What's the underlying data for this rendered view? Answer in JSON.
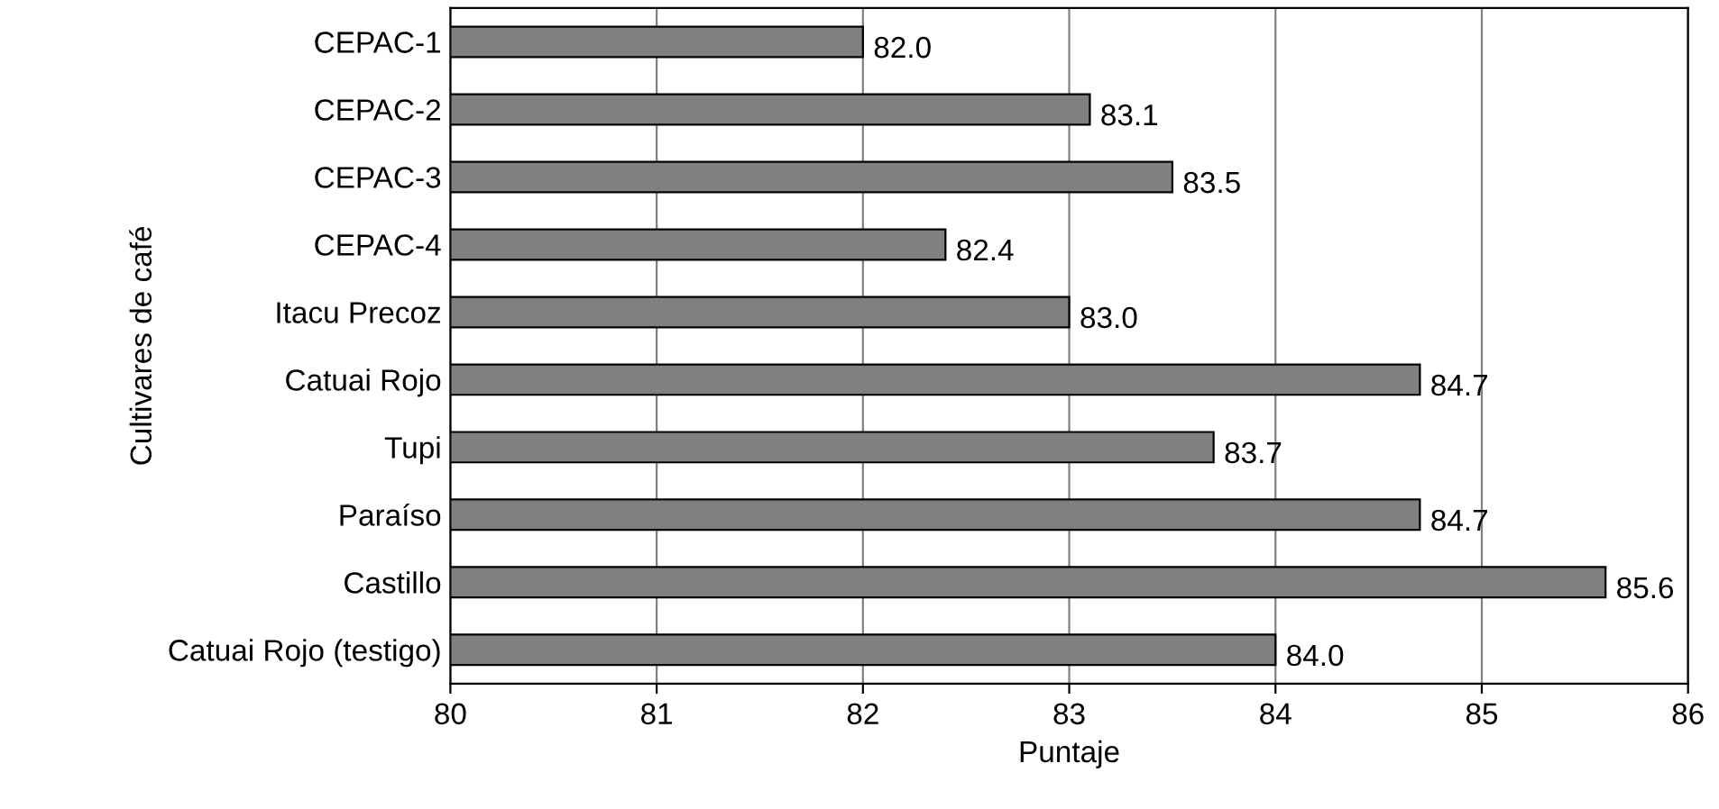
{
  "chart_data": {
    "type": "bar",
    "orientation": "horizontal",
    "xlabel": "Puntaje",
    "ylabel": "Cultivares de café",
    "categories": [
      "CEPAC-1",
      "CEPAC-2",
      "CEPAC-3",
      "CEPAC-4",
      "Itacu Precoz",
      "Catuai Rojo",
      "Tupi",
      "Paraíso",
      "Castillo",
      "Catuai Rojo (testigo)"
    ],
    "values": [
      82.0,
      83.1,
      83.5,
      82.4,
      83.0,
      84.7,
      83.7,
      84.7,
      85.6,
      84.0
    ],
    "value_labels": [
      "82.0",
      "83.1",
      "83.5",
      "82.4",
      "83.0",
      "84.7",
      "83.7",
      "84.7",
      "85.6",
      "84.0"
    ],
    "color": "#808080",
    "xlim": [
      80,
      86
    ],
    "xticks": [
      80,
      81,
      82,
      83,
      84,
      85,
      86
    ],
    "grid": "x",
    "legend": false
  }
}
